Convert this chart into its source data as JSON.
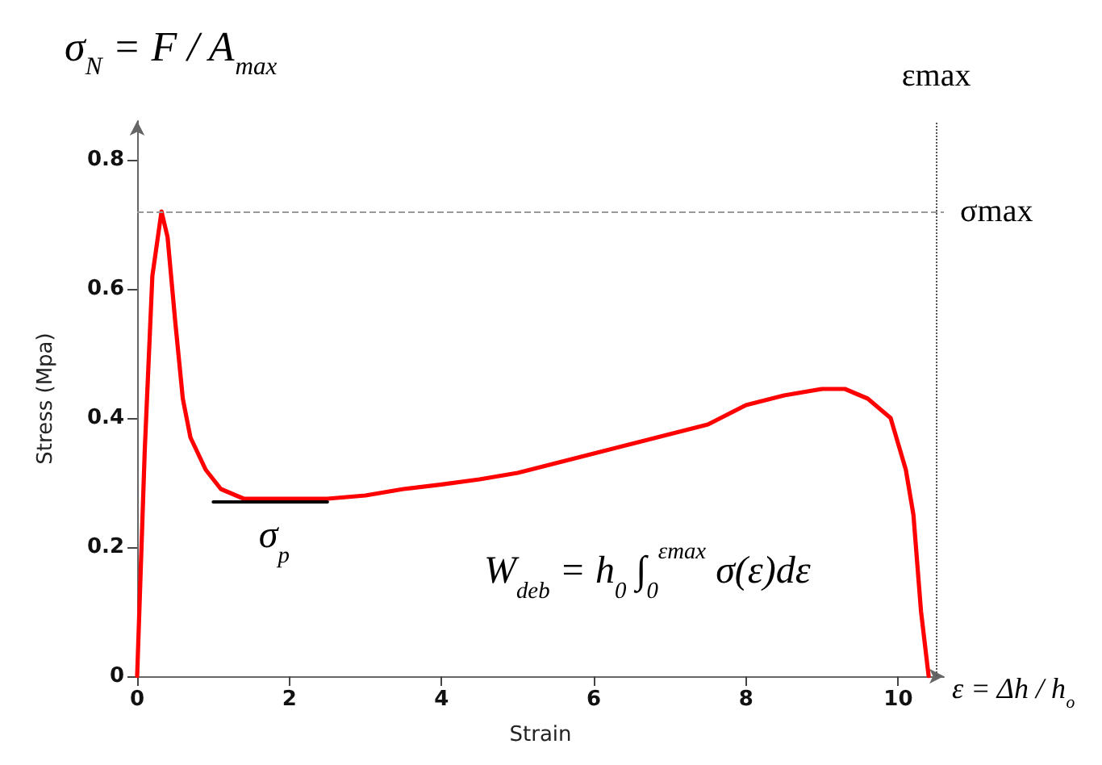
{
  "chart_data": {
    "type": "line",
    "xlabel": "Strain",
    "ylabel": "Stress (Mpa)",
    "xlim": [
      0,
      10.6
    ],
    "ylim": [
      0,
      0.86
    ],
    "xticks": [
      0,
      2,
      4,
      6,
      8,
      10
    ],
    "yticks": [
      0,
      0.2,
      0.4,
      0.6,
      0.8
    ],
    "grid": false,
    "marker": "none",
    "line_style": "solid",
    "series": [
      {
        "color": "#ff0000",
        "x": [
          0,
          0.1,
          0.2,
          0.32,
          0.4,
          0.5,
          0.6,
          0.7,
          0.9,
          1.1,
          1.4,
          2,
          2.5,
          3,
          3.5,
          4,
          4.5,
          5,
          5.5,
          6,
          6.5,
          7,
          7.5,
          8,
          8.5,
          9,
          9.3,
          9.6,
          9.9,
          10,
          10.1,
          10.2,
          10.3,
          10.4
        ],
        "values": [
          0,
          0.35,
          0.62,
          0.72,
          0.68,
          0.55,
          0.43,
          0.37,
          0.32,
          0.29,
          0.275,
          0.275,
          0.275,
          0.28,
          0.29,
          0.297,
          0.305,
          0.315,
          0.33,
          0.345,
          0.36,
          0.375,
          0.39,
          0.42,
          0.435,
          0.445,
          0.445,
          0.43,
          0.4,
          0.36,
          0.32,
          0.25,
          0.1,
          0
        ]
      },
      {
        "color": "#000000",
        "x": [
          1,
          2.5
        ],
        "values": [
          0.27,
          0.27
        ]
      }
    ],
    "ref_lines": [
      {
        "axis": "y",
        "value": 0.72,
        "label": "σmax",
        "line_style": "dashed",
        "color": "#999999"
      },
      {
        "axis": "x",
        "value": 10.5,
        "label": "εmax",
        "line_style": "dotted",
        "color": "#555555"
      }
    ],
    "annotations": [
      "σ$_{N}$ = F / A$_{max}$",
      {
        "text": "σ$_{p}$",
        "x": 1.8,
        "y": 0.27
      },
      "W$_{deb}$ = h$_{0}$ ∫$_{0}$$^{εmax}$ σ(ε)dε",
      "ε = Δh / h$_{o}$"
    ]
  }
}
